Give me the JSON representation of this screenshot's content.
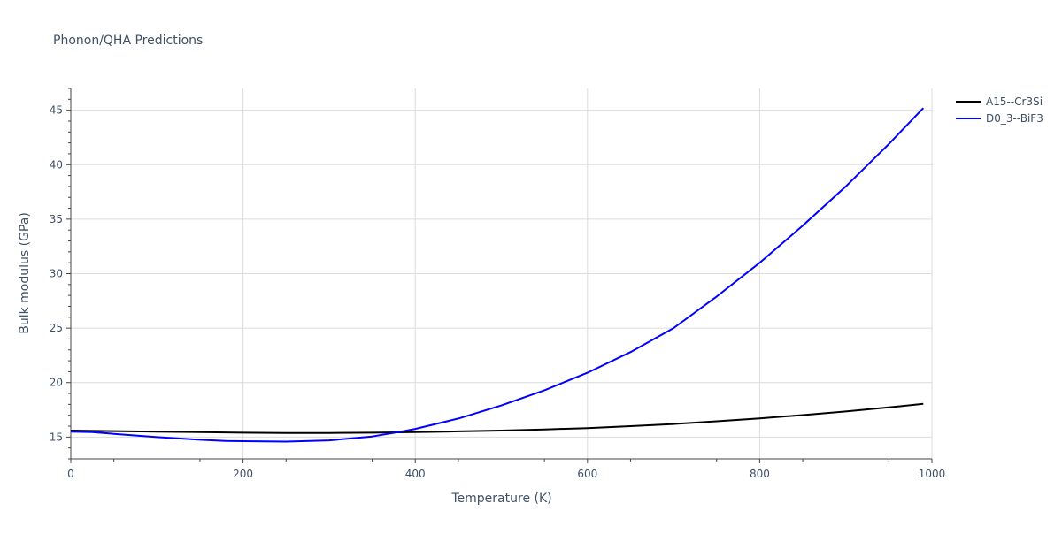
{
  "chart_data": {
    "type": "line",
    "title": "Phonon/QHA Predictions",
    "xlabel": "Temperature (K)",
    "ylabel": "Bulk modulus (GPa)",
    "xlim": [
      0,
      1000
    ],
    "ylim": [
      13,
      47
    ],
    "xticks": [
      0,
      200,
      400,
      600,
      800,
      1000
    ],
    "yticks": [
      15,
      20,
      25,
      30,
      35,
      40,
      45
    ],
    "grid": true,
    "legend_position": "top-right",
    "series": [
      {
        "name": "A15--Cr3Si",
        "color": "#000000",
        "x": [
          0,
          50,
          100,
          150,
          200,
          250,
          300,
          350,
          400,
          450,
          500,
          550,
          600,
          650,
          700,
          750,
          800,
          850,
          900,
          950,
          990
        ],
        "y": [
          15.6,
          15.55,
          15.5,
          15.45,
          15.4,
          15.38,
          15.38,
          15.4,
          15.45,
          15.52,
          15.6,
          15.7,
          15.82,
          16.0,
          16.2,
          16.45,
          16.72,
          17.02,
          17.35,
          17.72,
          18.05
        ]
      },
      {
        "name": "D0_3--BiF3",
        "color": "#0000ff",
        "x": [
          0,
          25,
          50,
          100,
          150,
          180,
          200,
          250,
          300,
          350,
          380,
          400,
          450,
          500,
          550,
          600,
          650,
          700,
          750,
          800,
          850,
          900,
          950,
          990
        ],
        "y": [
          15.5,
          15.45,
          15.3,
          15.0,
          14.75,
          14.65,
          14.62,
          14.58,
          14.7,
          15.05,
          15.45,
          15.75,
          16.7,
          17.9,
          19.3,
          20.9,
          22.8,
          25.0,
          27.9,
          31.0,
          34.4,
          38.0,
          41.9,
          45.2
        ]
      }
    ]
  }
}
